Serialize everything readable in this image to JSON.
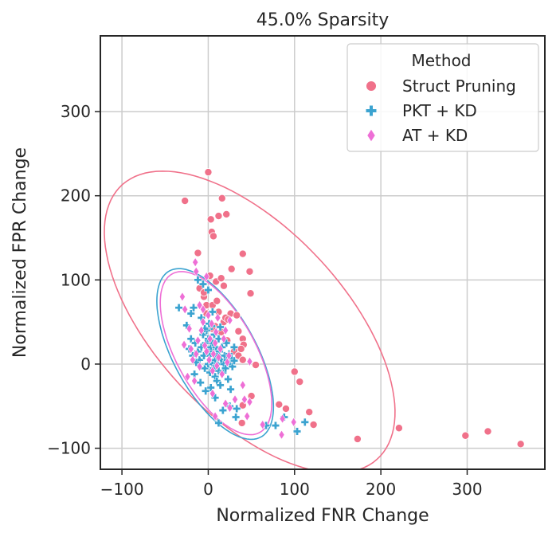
{
  "chart_data": {
    "type": "scatter",
    "title": "45.0% Sparsity",
    "xlabel": "Normalized FNR Change",
    "ylabel": "Normalized FPR Change",
    "xlim": [
      -125,
      390
    ],
    "ylim": [
      -125,
      390
    ],
    "xticks": [
      -100,
      0,
      100,
      200,
      300
    ],
    "yticks": [
      -100,
      0,
      100,
      200,
      300
    ],
    "xtick_labels": [
      "−100",
      "0",
      "100",
      "200",
      "300"
    ],
    "ytick_labels": [
      "−100",
      "0",
      "100",
      "200",
      "300"
    ],
    "grid": true,
    "legend": {
      "title": "Method",
      "placement": "top-right"
    },
    "series": [
      {
        "name": "Struct Pruning",
        "marker": "circle",
        "color": "#f0718a",
        "points": [
          [
            -27,
            194
          ],
          [
            -12,
            132
          ],
          [
            -10,
            90
          ],
          [
            0,
            228
          ],
          [
            3,
            172
          ],
          [
            4,
            157
          ],
          [
            6,
            152
          ],
          [
            12,
            176
          ],
          [
            16,
            197
          ],
          [
            21,
            178
          ],
          [
            27,
            113
          ],
          [
            40,
            131
          ],
          [
            48,
            110
          ],
          [
            49,
            84
          ],
          [
            -5,
            80
          ],
          [
            -2,
            70
          ],
          [
            5,
            70
          ],
          [
            9,
            98
          ],
          [
            15,
            102
          ],
          [
            18,
            93
          ],
          [
            2,
            105
          ],
          [
            8,
            45
          ],
          [
            12,
            62
          ],
          [
            18,
            50
          ],
          [
            22,
            28
          ],
          [
            26,
            60
          ],
          [
            33,
            58
          ],
          [
            35,
            39
          ],
          [
            40,
            30
          ],
          [
            41,
            23
          ],
          [
            30,
            15
          ],
          [
            35,
            10
          ],
          [
            40,
            5
          ],
          [
            38,
            18
          ],
          [
            27,
            5
          ],
          [
            15,
            38
          ],
          [
            20,
            55
          ],
          [
            5,
            42
          ],
          [
            -5,
            85
          ],
          [
            10,
            75
          ],
          [
            -2,
            60
          ],
          [
            23,
            53
          ],
          [
            55,
            -1
          ],
          [
            50,
            -38
          ],
          [
            40,
            -49
          ],
          [
            39,
            -70
          ],
          [
            82,
            -48
          ],
          [
            90,
            -53
          ],
          [
            100,
            -9
          ],
          [
            106,
            -21
          ],
          [
            117,
            -57
          ],
          [
            122,
            -72
          ],
          [
            173,
            -89
          ],
          [
            221,
            -76
          ],
          [
            298,
            -85
          ],
          [
            324,
            -80
          ],
          [
            362,
            -95
          ]
        ]
      },
      {
        "name": "PKT + KD",
        "marker": "plus",
        "color": "#3ba3d0",
        "points": [
          [
            -34,
            67
          ],
          [
            -25,
            46
          ],
          [
            -17,
            67
          ],
          [
            -12,
            100
          ],
          [
            -6,
            95
          ],
          [
            0,
            88
          ],
          [
            5,
            62
          ],
          [
            -20,
            30
          ],
          [
            -18,
            10
          ],
          [
            -15,
            25
          ],
          [
            -12,
            15
          ],
          [
            -10,
            5
          ],
          [
            -8,
            20
          ],
          [
            -6,
            35
          ],
          [
            -5,
            10
          ],
          [
            -4,
            -5
          ],
          [
            -3,
            25
          ],
          [
            -2,
            40
          ],
          [
            0,
            0
          ],
          [
            0,
            15
          ],
          [
            0,
            30
          ],
          [
            2,
            -10
          ],
          [
            2,
            10
          ],
          [
            3,
            20
          ],
          [
            4,
            45
          ],
          [
            5,
            0
          ],
          [
            5,
            25
          ],
          [
            6,
            -5
          ],
          [
            6,
            15
          ],
          [
            7,
            35
          ],
          [
            8,
            -15
          ],
          [
            8,
            5
          ],
          [
            9,
            20
          ],
          [
            10,
            -20
          ],
          [
            10,
            10
          ],
          [
            11,
            0
          ],
          [
            12,
            30
          ],
          [
            12,
            -8
          ],
          [
            13,
            15
          ],
          [
            14,
            -25
          ],
          [
            15,
            5
          ],
          [
            16,
            20
          ],
          [
            17,
            -10
          ],
          [
            18,
            0
          ],
          [
            19,
            10
          ],
          [
            20,
            -5
          ],
          [
            21,
            25
          ],
          [
            22,
            5
          ],
          [
            23,
            -18
          ],
          [
            24,
            12
          ],
          [
            25,
            0
          ],
          [
            26,
            -30
          ],
          [
            27,
            7
          ],
          [
            28,
            -3
          ],
          [
            30,
            20
          ],
          [
            -14,
            2
          ],
          [
            -16,
            -12
          ],
          [
            -9,
            -22
          ],
          [
            -3,
            -32
          ],
          [
            3,
            -28
          ],
          [
            8,
            -40
          ],
          [
            17,
            -55
          ],
          [
            25,
            -50
          ],
          [
            33,
            -53
          ],
          [
            32,
            -63
          ],
          [
            12,
            -70
          ],
          [
            67,
            -73
          ],
          [
            78,
            -73
          ],
          [
            88,
            -63
          ],
          [
            103,
            -80
          ],
          [
            112,
            -69
          ],
          [
            -20,
            60
          ],
          [
            -8,
            55
          ],
          [
            -4,
            42
          ],
          [
            1,
            48
          ],
          [
            14,
            44
          ],
          [
            30,
            4
          ],
          [
            -22,
            18
          ]
        ]
      },
      {
        "name": "AT + KD",
        "marker": "diamond",
        "color": "#ee6fd6",
        "points": [
          [
            -15,
            121
          ],
          [
            -14,
            110
          ],
          [
            -2,
            104
          ],
          [
            -27,
            65
          ],
          [
            -22,
            42
          ],
          [
            -20,
            18
          ],
          [
            -18,
            5
          ],
          [
            -14,
            12
          ],
          [
            -12,
            28
          ],
          [
            -10,
            -3
          ],
          [
            -8,
            40
          ],
          [
            -6,
            50
          ],
          [
            -4,
            22
          ],
          [
            -2,
            15
          ],
          [
            0,
            58
          ],
          [
            1,
            5
          ],
          [
            2,
            30
          ],
          [
            4,
            48
          ],
          [
            5,
            -8
          ],
          [
            6,
            12
          ],
          [
            8,
            25
          ],
          [
            9,
            38
          ],
          [
            10,
            -2
          ],
          [
            11,
            55
          ],
          [
            12,
            8
          ],
          [
            14,
            18
          ],
          [
            16,
            -12
          ],
          [
            18,
            30
          ],
          [
            20,
            40
          ],
          [
            22,
            2
          ],
          [
            24,
            10
          ],
          [
            25,
            52
          ],
          [
            -28,
            23
          ],
          [
            -24,
            -15
          ],
          [
            -16,
            -20
          ],
          [
            -10,
            70
          ],
          [
            -6,
            65
          ],
          [
            5,
            -35
          ],
          [
            8,
            -62
          ],
          [
            20,
            -47
          ],
          [
            25,
            -52
          ],
          [
            31,
            -42
          ],
          [
            40,
            -25
          ],
          [
            42,
            -42
          ],
          [
            48,
            -45
          ],
          [
            45,
            -62
          ],
          [
            63,
            -72
          ],
          [
            85,
            -84
          ],
          [
            99,
            -69
          ],
          [
            86,
            -65
          ],
          [
            48,
            3
          ],
          [
            -30,
            80
          ]
        ]
      }
    ],
    "ellipses": [
      {
        "series": "Struct Pruning",
        "cx": 48,
        "cy": 50,
        "rx": 220,
        "ry": 110,
        "angle_deg": -48
      },
      {
        "series": "PKT + KD",
        "cx": 8,
        "cy": 12,
        "rx": 112,
        "ry": 48,
        "angle_deg": -62
      },
      {
        "series": "AT + KD",
        "cx": 9,
        "cy": 13,
        "rx": 107,
        "ry": 46,
        "angle_deg": -62
      }
    ]
  }
}
